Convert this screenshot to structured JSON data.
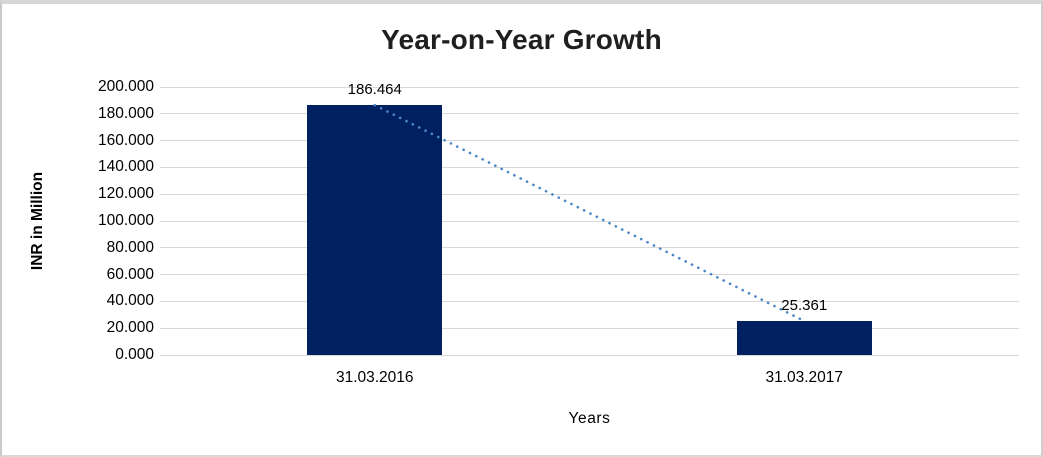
{
  "chart_data": {
    "type": "bar",
    "title": "Year-on-Year Growth",
    "categories": [
      "31.03.2016",
      "31.03.2017"
    ],
    "values": [
      186.464,
      25.361
    ],
    "data_labels": [
      "186.464",
      "25.361"
    ],
    "xlabel": "Years",
    "ylabel": "INR in Million",
    "ylim": [
      0,
      200
    ],
    "y_tick_interval": 20,
    "y_tick_labels": [
      "0.000",
      "20.000",
      "40.000",
      "60.000",
      "80.000",
      "100.000",
      "120.000",
      "140.000",
      "160.000",
      "180.000",
      "200.000"
    ],
    "grid": true,
    "legend": "none",
    "trendline": {
      "style": "dotted",
      "connects": "bar-top-centers",
      "from_value": 186.464,
      "to_value": 25.361
    }
  },
  "colors": {
    "bar": "#002060",
    "trendline": "#4a86c8",
    "gridline": "#d9d9d9",
    "title_text": "#1f1f1f",
    "axis_text": "#000000",
    "background": "#ffffff",
    "frame_border": "#d0d0d0"
  }
}
